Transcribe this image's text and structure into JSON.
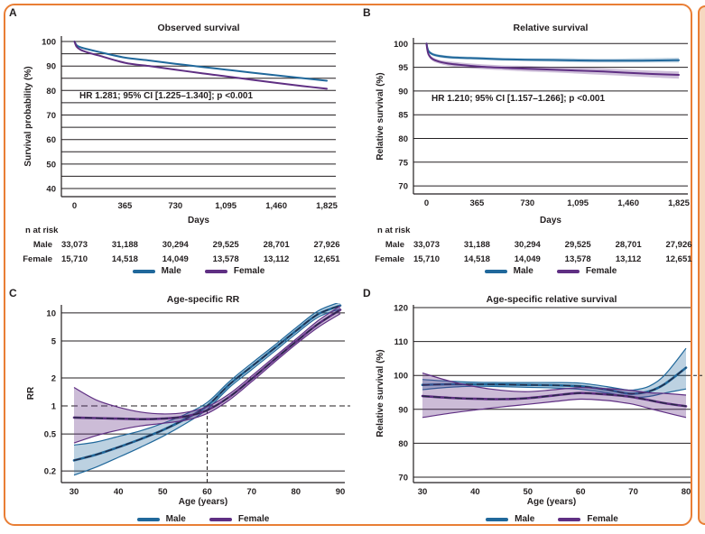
{
  "colors": {
    "male": "#20689b",
    "female": "#5f2f83",
    "grid": "#231f20",
    "dark": "#232842",
    "border_orange": "#e97e35",
    "edge_peach": "#f6d8c0",
    "text": "#231f20"
  },
  "legend": {
    "items": [
      {
        "series": "male",
        "label": "Male"
      },
      {
        "series": "female",
        "label": "Female"
      }
    ]
  },
  "panels": [
    {
      "label": "A"
    },
    {
      "label": "B"
    },
    {
      "label": "C"
    },
    {
      "label": "D"
    }
  ],
  "chart_data": [
    {
      "type": "line",
      "title": "Observed survival",
      "xlabel": "Days",
      "ylabel": "Survival probability (%)",
      "annotation": "HR 1.281; 95% CI [1.225–1.340]; p <0.001",
      "yscale": "linear",
      "xlim": [
        -95,
        1890
      ],
      "ylim": [
        36.7,
        102.2
      ],
      "ygrid": [
        40,
        45,
        50,
        55,
        60,
        65,
        70,
        75,
        80,
        85,
        90,
        95,
        100
      ],
      "yticks": {
        "values": [
          100,
          90,
          80,
          70,
          60,
          50,
          40
        ],
        "labels": [
          "100",
          "90",
          "80",
          "70",
          "60",
          "50",
          "40"
        ]
      },
      "xticks": {
        "values": [
          0,
          365,
          730,
          1095,
          1460,
          1825
        ],
        "labels": [
          "0",
          "365",
          "730",
          "1,095",
          "1,460",
          "1,825"
        ]
      },
      "series": [
        {
          "name": "male",
          "x": [
            0,
            15,
            40,
            90,
            180,
            365,
            550,
            730,
            910,
            1095,
            1280,
            1460,
            1640,
            1825
          ],
          "y": [
            100,
            98.5,
            97.7,
            96.9,
            95.7,
            93.4,
            92.2,
            90.9,
            89.7,
            88.5,
            87.3,
            86.2,
            85.1,
            84.0
          ]
        },
        {
          "name": "female",
          "x": [
            0,
            15,
            40,
            90,
            180,
            365,
            550,
            730,
            910,
            1095,
            1280,
            1460,
            1640,
            1825
          ],
          "y": [
            100,
            97.9,
            96.7,
            95.6,
            94.2,
            91.3,
            89.9,
            88.5,
            87.1,
            85.8,
            84.4,
            83.1,
            81.9,
            80.7
          ]
        }
      ],
      "n_at_risk": {
        "heading": "n at risk",
        "rows": [
          {
            "label": "Male",
            "values": [
              "33,073",
              "31,188",
              "30,294",
              "29,525",
              "28,701",
              "27,926"
            ]
          },
          {
            "label": "Female",
            "values": [
              "15,710",
              "14,518",
              "14,049",
              "13,578",
              "13,112",
              "12,651"
            ]
          }
        ]
      }
    },
    {
      "type": "line",
      "title": "Relative survival",
      "xlabel": "Days",
      "ylabel": "Relative survival (%)",
      "annotation": "HR 1.210; 95% CI [1.157–1.266]; p <0.001",
      "yscale": "linear",
      "xlim": [
        -95,
        1890
      ],
      "ylim": [
        68.3,
        101.2
      ],
      "ygrid": [
        70,
        75,
        80,
        85,
        90,
        95,
        100
      ],
      "yticks": {
        "values": [
          100,
          95,
          90,
          85,
          80,
          75,
          70
        ],
        "labels": [
          "100",
          "95",
          "90",
          "85",
          "80",
          "75",
          "70"
        ]
      },
      "xticks": {
        "values": [
          0,
          365,
          730,
          1095,
          1460,
          1825
        ],
        "labels": [
          "0",
          "365",
          "730",
          "1,095",
          "1,460",
          "1,825"
        ]
      },
      "series": [
        {
          "name": "male",
          "x": [
            0,
            5,
            15,
            40,
            90,
            180,
            365,
            550,
            730,
            1000,
            1280,
            1550,
            1825
          ],
          "y": [
            100,
            99.2,
            98.4,
            97.8,
            97.4,
            97.1,
            96.9,
            96.7,
            96.6,
            96.5,
            96.4,
            96.4,
            96.5
          ],
          "low": [
            100,
            99.0,
            98.1,
            97.5,
            97.1,
            96.8,
            96.6,
            96.4,
            96.3,
            96.1,
            96.0,
            96.0,
            96.0
          ],
          "high": [
            100,
            99.4,
            98.7,
            98.1,
            97.7,
            97.4,
            97.2,
            97.0,
            96.9,
            96.9,
            96.8,
            96.9,
            97.0
          ],
          "band_opacity": 0.3
        },
        {
          "name": "female",
          "x": [
            0,
            5,
            15,
            40,
            90,
            180,
            365,
            550,
            730,
            1000,
            1280,
            1550,
            1825
          ],
          "y": [
            100,
            98.8,
            97.7,
            96.8,
            96.2,
            95.7,
            95.2,
            94.9,
            94.7,
            94.4,
            94.1,
            93.7,
            93.4
          ],
          "low": [
            100,
            98.5,
            97.3,
            96.4,
            95.8,
            95.2,
            94.7,
            94.4,
            94.1,
            93.8,
            93.4,
            93.0,
            92.6
          ],
          "high": [
            100,
            99.1,
            98.1,
            97.2,
            96.6,
            96.2,
            95.7,
            95.4,
            95.3,
            95.0,
            94.8,
            94.4,
            94.1
          ],
          "band_opacity": 0.3
        }
      ],
      "n_at_risk": {
        "heading": "n at risk",
        "rows": [
          {
            "label": "Male",
            "values": [
              "33,073",
              "31,188",
              "30,294",
              "29,525",
              "28,701",
              "27,926"
            ]
          },
          {
            "label": "Female",
            "values": [
              "15,710",
              "14,518",
              "14,049",
              "13,578",
              "13,112",
              "12,651"
            ]
          }
        ]
      }
    },
    {
      "type": "line",
      "title": "Age-specific RR",
      "xlabel": "Age (years)",
      "ylabel": "RR",
      "yscale": "log",
      "xlim": [
        27.15,
        91.02
      ],
      "ylim": [
        0.15,
        12.2
      ],
      "ygrid": [
        0.2,
        0.5,
        1,
        2,
        5,
        10
      ],
      "ydash": [
        1
      ],
      "dash_ext_y": 1,
      "vline": {
        "x": 60,
        "to_y": 1
      },
      "yticks": {
        "values": [
          10,
          5,
          2,
          1,
          0.5,
          0.2
        ],
        "labels": [
          "10",
          "5",
          "2",
          "1",
          "0.5",
          "0.2"
        ]
      },
      "xticks": {
        "values": [
          30,
          40,
          50,
          60,
          70,
          80,
          90
        ],
        "labels": [
          "30",
          "40",
          "50",
          "60",
          "70",
          "80",
          "90"
        ]
      },
      "series": [
        {
          "name": "male",
          "x": [
            30,
            35,
            40,
            45,
            50,
            55,
            60,
            65,
            70,
            75,
            80,
            85,
            90
          ],
          "y": [
            0.26,
            0.3,
            0.36,
            0.44,
            0.55,
            0.72,
            1.0,
            1.7,
            2.65,
            4.1,
            6.4,
            9.7,
            12.0
          ],
          "low": [
            0.18,
            0.22,
            0.28,
            0.36,
            0.47,
            0.64,
            0.92,
            1.58,
            2.45,
            3.8,
            5.95,
            9.0,
            11.0
          ],
          "high": [
            0.38,
            0.41,
            0.47,
            0.54,
            0.65,
            0.81,
            1.09,
            1.83,
            2.87,
            4.42,
            6.9,
            10.5,
            13.1
          ],
          "band_opacity": 0.3,
          "band_edges": true,
          "dark_overlay": true
        },
        {
          "name": "female",
          "x": [
            30,
            35,
            40,
            45,
            50,
            55,
            60,
            65,
            70,
            75,
            80,
            85,
            90
          ],
          "y": [
            0.75,
            0.74,
            0.73,
            0.72,
            0.73,
            0.77,
            0.9,
            1.25,
            1.95,
            3.1,
            4.9,
            7.6,
            10.8
          ],
          "low": [
            0.4,
            0.48,
            0.55,
            0.61,
            0.65,
            0.7,
            0.83,
            1.16,
            1.82,
            2.9,
            4.6,
            7.0,
            9.8
          ],
          "high": [
            1.58,
            1.16,
            0.97,
            0.86,
            0.82,
            0.85,
            0.98,
            1.35,
            2.1,
            3.32,
            5.22,
            8.25,
            11.9
          ],
          "band_opacity": 0.32,
          "band_edges": true,
          "dark_overlay": true
        }
      ]
    },
    {
      "type": "line",
      "title": "Age-specific relative survival",
      "xlabel": "Age (years)",
      "ylabel": "Relative survival (%)",
      "yscale": "linear",
      "xlim": [
        28.29,
        80.86
      ],
      "ylim": [
        68.4,
        120.8
      ],
      "ygrid": [
        70,
        80,
        90,
        100,
        110,
        120
      ],
      "dash_ext_y": 100,
      "yticks": {
        "values": [
          120,
          110,
          100,
          90,
          80,
          70
        ],
        "labels": [
          "120",
          "110",
          "100",
          "90",
          "80",
          "70"
        ]
      },
      "xticks": {
        "values": [
          30,
          40,
          50,
          60,
          70,
          80
        ],
        "labels": [
          "30",
          "40",
          "50",
          "60",
          "70",
          "80"
        ]
      },
      "series": [
        {
          "name": "male",
          "x": [
            30,
            35,
            40,
            45,
            50,
            55,
            60,
            65,
            68,
            70,
            73,
            76,
            80
          ],
          "y": [
            97.2,
            97.4,
            97.4,
            97.3,
            97.2,
            97.1,
            96.8,
            95.8,
            94.9,
            94.6,
            95.3,
            97.5,
            102.3
          ],
          "low": [
            95.8,
            96.5,
            96.8,
            96.7,
            96.5,
            96.3,
            95.9,
            94.9,
            93.9,
            93.5,
            93.8,
            94.8,
            96.0
          ],
          "high": [
            98.8,
            98.3,
            98.0,
            97.9,
            97.9,
            97.9,
            97.7,
            96.7,
            95.9,
            95.7,
            96.8,
            100.2,
            108.0
          ],
          "band_opacity": 0.3,
          "band_edges": true,
          "dark_overlay": true
        },
        {
          "name": "female",
          "x": [
            30,
            35,
            40,
            45,
            50,
            55,
            60,
            65,
            68,
            70,
            73,
            76,
            80
          ],
          "y": [
            93.9,
            93.4,
            93.1,
            93.0,
            93.3,
            94.1,
            94.8,
            94.4,
            94.0,
            93.6,
            92.7,
            91.8,
            90.9
          ],
          "low": [
            87.6,
            88.8,
            89.8,
            90.7,
            91.5,
            92.3,
            93.0,
            92.6,
            92.0,
            91.5,
            90.3,
            89.1,
            87.6
          ],
          "high": [
            100.7,
            98.4,
            96.7,
            95.6,
            95.2,
            95.8,
            96.4,
            96.1,
            95.8,
            95.5,
            94.9,
            94.7,
            94.2
          ],
          "band_opacity": 0.32,
          "band_edges": true,
          "dark_overlay": true
        }
      ]
    }
  ]
}
